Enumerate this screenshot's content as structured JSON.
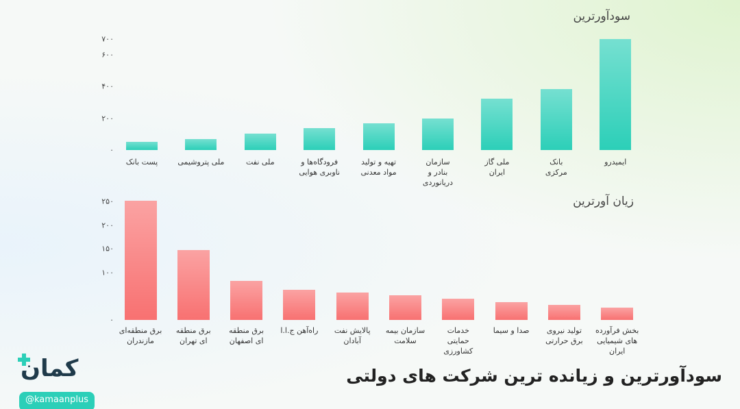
{
  "title": "سودآورترین و زیانده ترین شرکت های دولتی",
  "brand": "کمان",
  "handle": "@kamaanplus",
  "chart_data": [
    {
      "type": "bar",
      "title": "سودآورترین",
      "categories": [
        "پست بانک",
        "ملی پتروشیمی",
        "ملی نفت",
        "فرودگاه‌ها و\nناوبری هوایی",
        "تهیه و تولید\nمواد معدنی",
        "سازمان\nبنادر و\nدریانوردی",
        "ملی گاز\nایران",
        "بانک\nمرکزی",
        "ایمیدرو"
      ],
      "values": [
        52,
        69,
        104,
        138,
        169,
        199,
        324,
        385,
        700
      ],
      "color": "#2ccfb8",
      "ylim": [
        0,
        700
      ],
      "yticks": [
        {
          "value": 0,
          "label": "۰"
        },
        {
          "value": 200,
          "label": "۲۰۰"
        },
        {
          "value": 400,
          "label": "۴۰۰"
        },
        {
          "value": 600,
          "label": "۶۰۰"
        },
        {
          "value": 700,
          "label": "۷۰۰"
        }
      ]
    },
    {
      "type": "bar",
      "title": "زیان آورترین",
      "categories": [
        "برق منطقه‌ای\nمازندران",
        "برق منطقه\nای تهران",
        "برق منطقه\nای اصفهان",
        "راه‌آهن ج.ا.ا",
        "پالایش نفت\nآبادان",
        "سازمان بیمه\nسلامت",
        "خدمات\nحمایتی\nکشاورزی",
        "صدا و سیما",
        "تولید نیروی\nبرق حرارتی",
        "بخش فرآورده\nهای شیمیایی\nایران"
      ],
      "values": [
        251,
        147,
        82,
        64,
        58,
        52,
        45,
        38,
        32,
        26
      ],
      "color": "#f87171",
      "ylim": [
        0,
        250
      ],
      "yticks": [
        {
          "value": 0,
          "label": "۰"
        },
        {
          "value": 100,
          "label": "۱۰۰"
        },
        {
          "value": 150,
          "label": "۱۵۰"
        },
        {
          "value": 200,
          "label": "۲۰۰"
        },
        {
          "value": 250,
          "label": "۲۵۰"
        }
      ]
    }
  ]
}
